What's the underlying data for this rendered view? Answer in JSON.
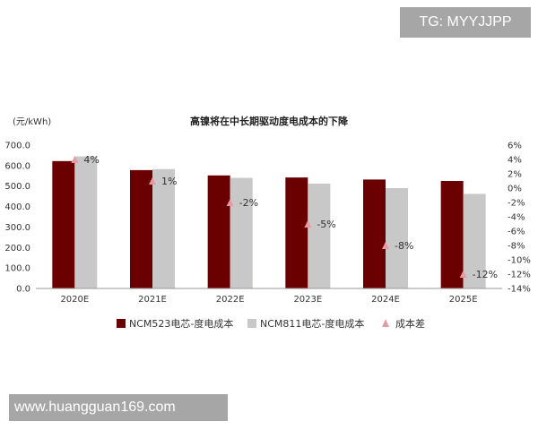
{
  "watermark_top": "TG: MYYJJPP",
  "watermark_bottom": "www.huangguan169.com",
  "chart_data": {
    "type": "bar",
    "title": "高镍将在中长期驱动度电成本的下降",
    "ylabel": "(元/kWh)",
    "categories": [
      "2020E",
      "2021E",
      "2022E",
      "2023E",
      "2024E",
      "2025E"
    ],
    "ylim": [
      0,
      700
    ],
    "yticks": [
      "700.0",
      "600.0",
      "500.0",
      "400.0",
      "300.0",
      "200.0",
      "100.0",
      "0.0"
    ],
    "y2lim": [
      -14,
      6
    ],
    "y2ticks": [
      "6%",
      "4%",
      "2%",
      "0%",
      "-2%",
      "-4%",
      "-6%",
      "-8%",
      "-10%",
      "-12%",
      "-14%"
    ],
    "series": [
      {
        "name": "NCM523电芯-度电成本",
        "type": "bar",
        "color": "#6b0000",
        "values": [
          622,
          578,
          552,
          542,
          532,
          525
        ]
      },
      {
        "name": "NCM811电芯-度电成本",
        "type": "bar",
        "color": "#c8c8c8",
        "values": [
          645,
          583,
          540,
          512,
          490,
          462
        ]
      },
      {
        "name": "成本差",
        "type": "marker",
        "axis": "right",
        "color": "#e89aa4",
        "values": [
          4,
          1,
          -2,
          -5,
          -8,
          -12
        ],
        "labels": [
          "4%",
          "1%",
          "-2%",
          "-5%",
          "-8%",
          "-12%"
        ]
      }
    ],
    "legend": "bottom",
    "grid": false
  }
}
